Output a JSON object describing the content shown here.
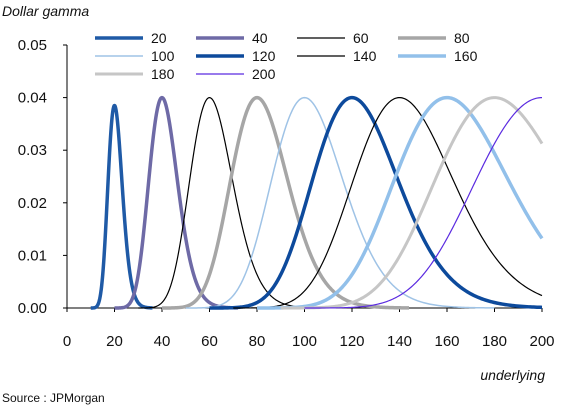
{
  "chart_data": {
    "type": "line",
    "ylabel": "Dollar gamma",
    "xlabel": "underlying",
    "source": "Source : JPMorgan",
    "xlim": [
      0,
      200
    ],
    "ylim": [
      0,
      0.05
    ],
    "x_ticks": [
      "0",
      "20",
      "40",
      "60",
      "80",
      "100",
      "120",
      "140",
      "160",
      "180",
      "200"
    ],
    "y_ticks": [
      "0.00",
      "0.01",
      "0.02",
      "0.03",
      "0.04",
      "0.05"
    ],
    "legend_position": "top",
    "series": [
      {
        "name": "20",
        "peak": 20,
        "color": "#1f5aa6",
        "width": 3.5
      },
      {
        "name": "40",
        "peak": 40,
        "color": "#6e6aa6",
        "width": 3.5
      },
      {
        "name": "60",
        "peak": 60,
        "color": "#000000",
        "width": 1.2
      },
      {
        "name": "80",
        "peak": 80,
        "color": "#a6a6a6",
        "width": 3.5
      },
      {
        "name": "100",
        "peak": 100,
        "color": "#9fc3e6",
        "width": 1.5
      },
      {
        "name": "120",
        "peak": 120,
        "color": "#0d4a9c",
        "width": 3.5
      },
      {
        "name": "140",
        "peak": 140,
        "color": "#000000",
        "width": 1.2
      },
      {
        "name": "160",
        "peak": 160,
        "color": "#92c0ea",
        "width": 3.5
      },
      {
        "name": "180",
        "peak": 180,
        "color": "#c6c6c6",
        "width": 3
      },
      {
        "name": "200",
        "peak": 200,
        "color": "#5b2be0",
        "width": 1.2
      }
    ],
    "peak_value": 0.04,
    "peak_value_20": 0.0385
  }
}
